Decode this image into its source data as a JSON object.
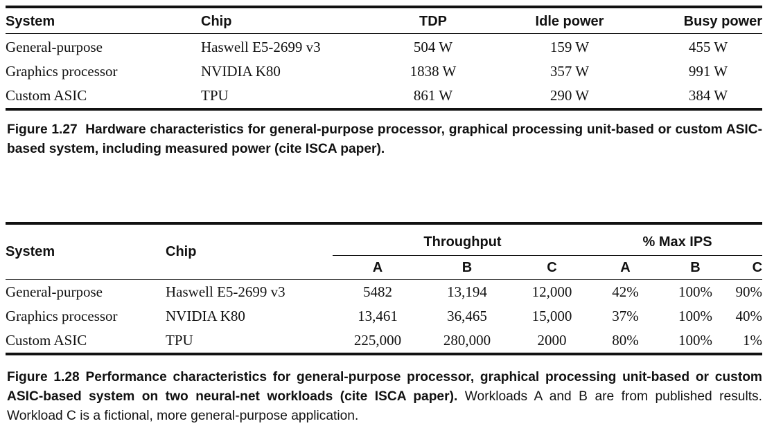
{
  "table1": {
    "headers": [
      "System",
      "Chip",
      "TDP",
      "Idle power",
      "Busy power"
    ],
    "rows": [
      [
        "General-purpose",
        "Haswell E5-2699 v3",
        "504 W",
        "159 W",
        "455 W"
      ],
      [
        "Graphics processor",
        "NVIDIA K80",
        "1838 W",
        "357 W",
        "991 W"
      ],
      [
        "Custom ASIC",
        "TPU",
        "861 W",
        "290 W",
        "384 W"
      ]
    ]
  },
  "caption1": {
    "figure": "Figure 1.27",
    "text": "Hardware characteristics for general-purpose processor, graphical processing unit-based or custom ASIC-based system, including measured power (cite ISCA paper)."
  },
  "table2": {
    "system_header": "System",
    "chip_header": "Chip",
    "group_headers": [
      "Throughput",
      "% Max IPS"
    ],
    "sub_headers": [
      "A",
      "B",
      "C",
      "A",
      "B",
      "C"
    ],
    "rows": [
      [
        "General-purpose",
        "Haswell E5-2699 v3",
        "5482",
        "13,194",
        "12,000",
        "42%",
        "100%",
        "90%"
      ],
      [
        "Graphics processor",
        "NVIDIA K80",
        "13,461",
        "36,465",
        "15,000",
        "37%",
        "100%",
        "40%"
      ],
      [
        "Custom ASIC",
        "TPU",
        "225,000",
        "280,000",
        "2000",
        "80%",
        "100%",
        "1%"
      ]
    ]
  },
  "caption2": {
    "figure": "Figure 1.28",
    "lead": "Performance characteristics for general-purpose processor, graphical processing unit-based or custom ASIC-based system on two neural-net workloads (cite ISCA paper).",
    "rest": "Workloads A and B are from published results. Workload C is a fictional, more general-purpose application."
  }
}
